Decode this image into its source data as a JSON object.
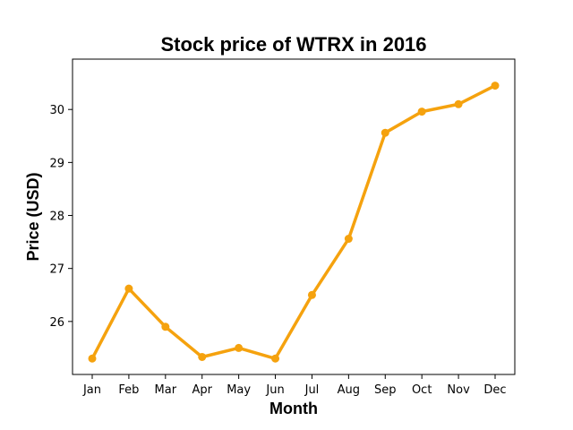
{
  "chart_data": {
    "type": "line",
    "title": "Stock price of WTRX in 2016",
    "xlabel": "Month",
    "ylabel": "Price (USD)",
    "categories": [
      "Jan",
      "Feb",
      "Mar",
      "Apr",
      "May",
      "Jun",
      "Jul",
      "Aug",
      "Sep",
      "Oct",
      "Nov",
      "Dec"
    ],
    "series": [
      {
        "values": [
          25.3,
          26.62,
          25.9,
          25.33,
          25.5,
          25.3,
          26.5,
          27.56,
          29.56,
          29.96,
          30.1,
          30.45
        ]
      }
    ],
    "ylim": [
      25.0,
      30.95
    ],
    "yticks": [
      26,
      27,
      28,
      29,
      30
    ],
    "grid": false,
    "color": "#f5a20e"
  }
}
